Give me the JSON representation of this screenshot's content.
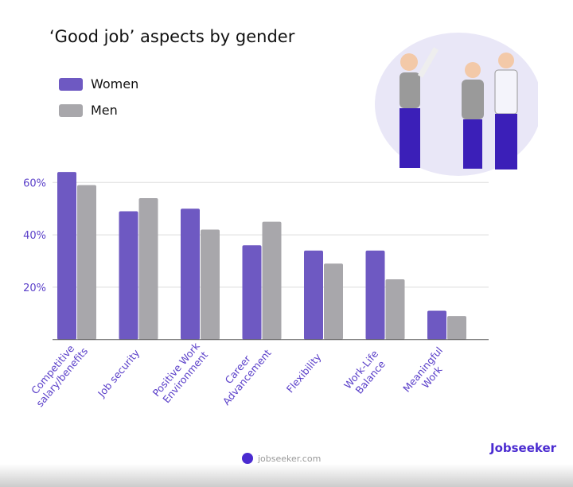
{
  "colors": {
    "women": "#6e59c2",
    "men": "#a8a7ab",
    "axis_text": "#5a3fc9",
    "brand": "#4a2bd0"
  },
  "illustration_icon": "three-cheering-office-workers",
  "footer": {
    "url": "jobseeker.com",
    "brand": "Jobseeker"
  },
  "chart_data": {
    "type": "bar",
    "title": "‘Good job’ aspects by gender",
    "categories": [
      "Competitive salary/benefits",
      "Job security",
      "Positive Work Environment",
      "Career Advancement",
      "Flexibility",
      "Work-Life Balance",
      "Meaningful Work"
    ],
    "series": [
      {
        "name": "Women",
        "values": [
          64,
          49,
          50,
          36,
          34,
          34,
          11
        ]
      },
      {
        "name": "Men",
        "values": [
          59,
          54,
          42,
          45,
          29,
          23,
          9
        ]
      }
    ],
    "ylim": [
      0,
      66
    ],
    "yticks": [
      20,
      40,
      60
    ],
    "ytick_labels": [
      "20%",
      "40%",
      "60%"
    ],
    "grid": true,
    "legend": "top-left"
  }
}
